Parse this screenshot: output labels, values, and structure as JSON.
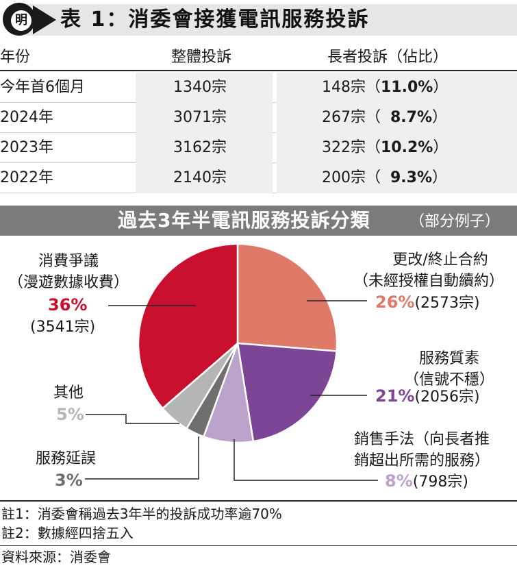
{
  "header": {
    "logo_char": "明",
    "title": "表 1：消委會接獲電訊服務投訴"
  },
  "table": {
    "columns": [
      "年份",
      "整體投訴",
      "長者投訴（佔比）"
    ],
    "rows": [
      {
        "period": "今年首6個月",
        "total": "1340宗",
        "elderly_count": "148宗（",
        "elderly_share": "11.0%",
        "close": "）"
      },
      {
        "period": "2024年",
        "total": "3071宗",
        "elderly_count": "267宗（",
        "elderly_share": "8.7%",
        "close": "）"
      },
      {
        "period": "2023年",
        "total": "3162宗",
        "elderly_count": "322宗（",
        "elderly_share": "10.2%",
        "close": "）"
      },
      {
        "period": "2022年",
        "total": "2140宗",
        "elderly_count": "200宗（",
        "elderly_share": "9.3%",
        "close": "）"
      }
    ]
  },
  "section": {
    "title": "過去3年半電訊服務投訴分類",
    "subtitle": "（部分例子）"
  },
  "chart_data": {
    "type": "pie",
    "title": "過去3年半電訊服務投訴分類",
    "slices": [
      {
        "label_lines": [
          "更改/終止合約",
          "（未經授權自動續約）"
        ],
        "percent_label": "26%",
        "count_label": "(2573宗)",
        "value": 26,
        "color": "#df7a68"
      },
      {
        "label_lines": [
          "服務質素",
          "（信號不穩）"
        ],
        "percent_label": "21%",
        "count_label": "(2056宗)",
        "value": 21,
        "color": "#7d4596"
      },
      {
        "label_lines": [
          "銷售手法（向長者推",
          "銷超出所需的服務）"
        ],
        "percent_label": "8%",
        "count_label": "(798宗)",
        "value": 8,
        "color": "#bba2cb"
      },
      {
        "label_lines": [
          "服務延誤"
        ],
        "percent_label": "3%",
        "count_label": "",
        "value": 3,
        "color": "#6f6f6f"
      },
      {
        "label_lines": [
          "其他"
        ],
        "percent_label": "5%",
        "count_label": "",
        "value": 5,
        "color": "#b5b5b5"
      },
      {
        "label_lines": [
          "消費爭議",
          "（漫遊數據收費）"
        ],
        "percent_label": "36%",
        "count_label": "(3541宗)",
        "value": 36,
        "color": "#c8102e"
      }
    ]
  },
  "notes": [
    "註1：消委會稱過去3年半的投訴成功率逾70%",
    "註2：數據經四捨五入"
  ],
  "source": "資料來源：消委會"
}
